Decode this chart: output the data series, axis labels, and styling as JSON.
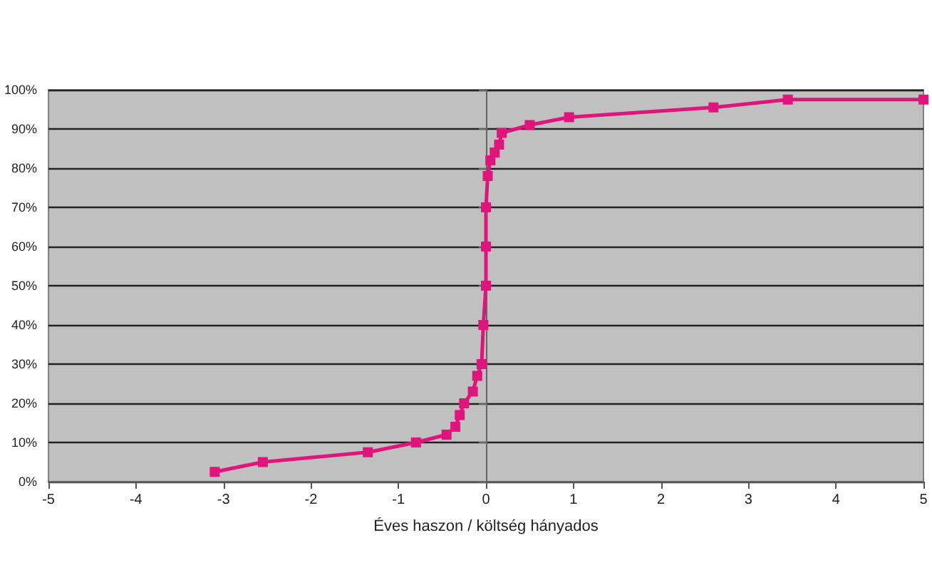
{
  "chart_data": {
    "type": "line",
    "xlabel": "Éves haszon / költség hányados",
    "x": [
      -3.1,
      -2.55,
      -1.35,
      -0.8,
      -0.45,
      -0.35,
      -0.3,
      -0.25,
      -0.15,
      -0.1,
      -0.05,
      -0.03,
      0,
      0,
      0,
      0.02,
      0.05,
      0.1,
      0.15,
      0.18,
      0.5,
      0.95,
      2.6,
      3.45,
      5
    ],
    "series": [
      {
        "color": "#e0157c",
        "values": [
          2.5,
          5,
          7.5,
          10,
          12,
          14,
          17,
          20,
          23,
          27,
          30,
          40,
          50,
          60,
          70,
          78,
          82,
          84,
          86,
          89,
          91,
          93,
          95.5,
          97.5,
          97.5
        ]
      }
    ],
    "xlim": [
      -5,
      5
    ],
    "xticks": [
      -5,
      -4,
      -3,
      -2,
      -1,
      0,
      1,
      2,
      3,
      4,
      5
    ],
    "ylim": [
      0,
      100
    ],
    "yticks": [
      {
        "value": 0,
        "label": "0%"
      },
      {
        "value": 10,
        "label": "10%"
      },
      {
        "value": 20,
        "label": "20%"
      },
      {
        "value": 30,
        "label": "30%"
      },
      {
        "value": 40,
        "label": "40%"
      },
      {
        "value": 50,
        "label": "50%"
      },
      {
        "value": 60,
        "label": "60%"
      },
      {
        "value": 70,
        "label": "70%"
      },
      {
        "value": 80,
        "label": "80%"
      },
      {
        "value": 90,
        "label": "90%"
      },
      {
        "value": 100,
        "label": "100%"
      }
    ],
    "grid": "y",
    "marker": "square",
    "line_style": "solid"
  }
}
